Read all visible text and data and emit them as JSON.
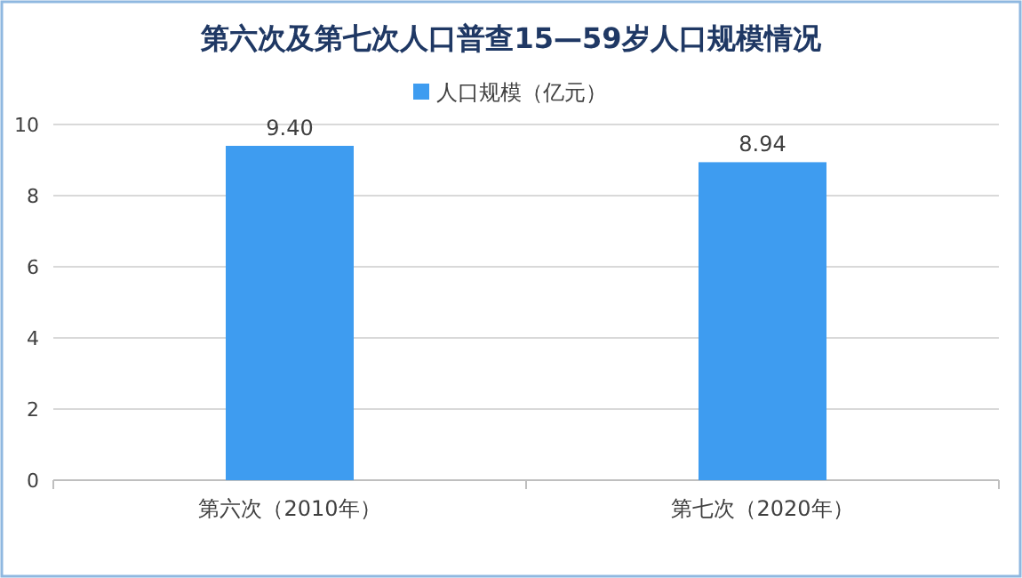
{
  "chart_data": {
    "type": "bar",
    "title": "第六次及第七次人口普查15—59岁人口规模情况",
    "categories": [
      "第六次（2010年）",
      "第七次（2020年）"
    ],
    "series": [
      {
        "name": "人口规模（亿元）",
        "color": "#3e9cf0",
        "values": [
          9.4,
          8.94
        ],
        "value_labels": [
          "9.40",
          "8.94"
        ]
      }
    ],
    "ylim": [
      0,
      10
    ],
    "yticks": [
      0,
      2,
      4,
      6,
      8,
      10
    ],
    "grid": "y",
    "legend": "top"
  }
}
